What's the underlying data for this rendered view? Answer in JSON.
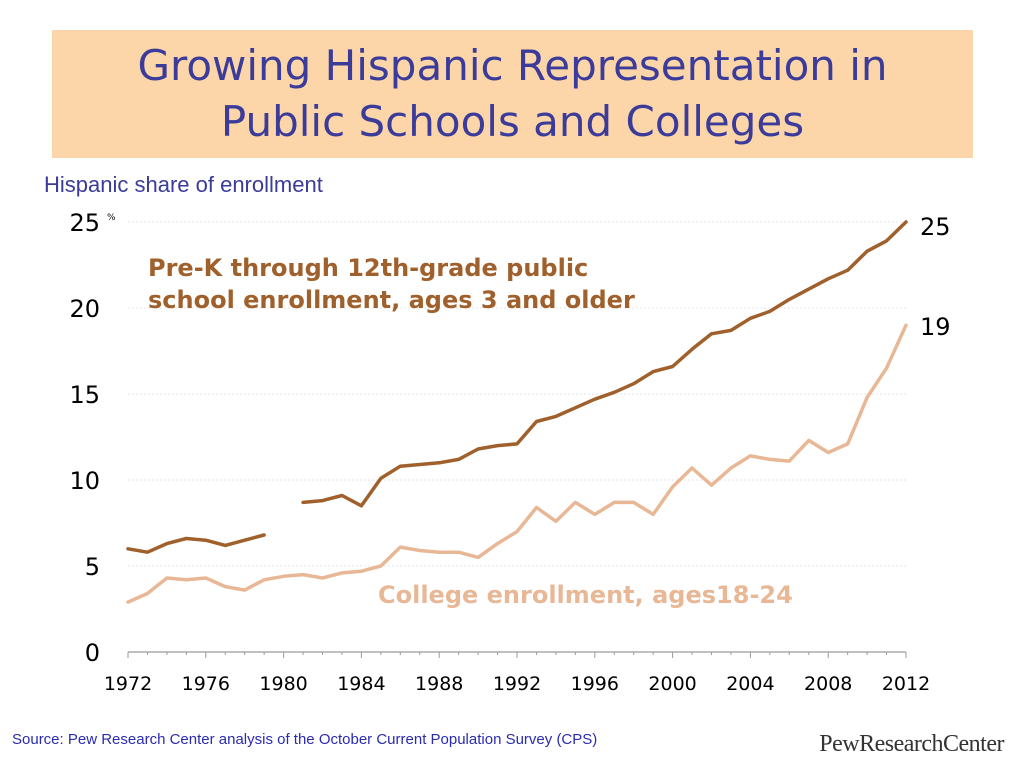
{
  "title": {
    "line1": "Growing Hispanic Representation in",
    "line2": "Public Schools and Colleges"
  },
  "subtitle": "Hispanic share of enrollment",
  "source": "Source: Pew Research Center analysis of the October Current Population Survey (CPS)",
  "logo": "PewResearchCenter",
  "colors": {
    "title": "#3b3b9a",
    "title_background": "#fcd5a8",
    "k12": "#a0602c",
    "college": "#e8b896"
  },
  "chart_data": {
    "type": "line",
    "ylabel": "",
    "yunit": "%",
    "ylim": [
      0,
      25
    ],
    "xlim": [
      1972,
      2012
    ],
    "yticks": [
      0,
      5,
      10,
      15,
      20,
      25
    ],
    "xticks": [
      1972,
      1976,
      1980,
      1984,
      1988,
      1992,
      1996,
      2000,
      2004,
      2008,
      2012
    ],
    "grid": true,
    "series": [
      {
        "name": "Pre-K through 12th-grade public school enrollment, ages 3 and older",
        "label_line1": "Pre-K through 12th-grade public",
        "label_line2": "school enrollment, ages 3 and older",
        "end_label": "25",
        "x": [
          1972,
          1973,
          1974,
          1975,
          1976,
          1977,
          1978,
          1979,
          1980,
          1981,
          1982,
          1983,
          1984,
          1985,
          1986,
          1987,
          1988,
          1989,
          1990,
          1991,
          1992,
          1993,
          1994,
          1995,
          1996,
          1997,
          1998,
          1999,
          2000,
          2001,
          2002,
          2003,
          2004,
          2005,
          2006,
          2007,
          2008,
          2009,
          2010,
          2011,
          2012
        ],
        "y": [
          6.0,
          5.8,
          6.3,
          6.6,
          6.5,
          6.2,
          6.5,
          6.8,
          null,
          8.7,
          8.8,
          9.1,
          8.5,
          10.1,
          10.8,
          10.9,
          11.0,
          11.2,
          11.8,
          12.0,
          12.1,
          13.4,
          13.7,
          14.2,
          14.7,
          15.1,
          15.6,
          16.3,
          16.6,
          17.6,
          18.5,
          18.7,
          19.4,
          19.8,
          20.5,
          21.1,
          21.7,
          22.2,
          23.3,
          23.9,
          25.0
        ]
      },
      {
        "name": "College enrollment, ages18-24",
        "label": "College enrollment, ages18-24",
        "end_label": "19",
        "x": [
          1972,
          1973,
          1974,
          1975,
          1976,
          1977,
          1978,
          1979,
          1980,
          1981,
          1982,
          1983,
          1984,
          1985,
          1986,
          1987,
          1988,
          1989,
          1990,
          1991,
          1992,
          1993,
          1994,
          1995,
          1996,
          1997,
          1998,
          1999,
          2000,
          2001,
          2002,
          2003,
          2004,
          2005,
          2006,
          2007,
          2008,
          2009,
          2010,
          2011,
          2012
        ],
        "y": [
          2.9,
          3.4,
          4.3,
          4.2,
          4.3,
          3.8,
          3.6,
          4.2,
          4.4,
          4.5,
          4.3,
          4.6,
          4.7,
          5.0,
          6.1,
          5.9,
          5.8,
          5.8,
          5.5,
          6.3,
          7.0,
          8.4,
          7.6,
          8.7,
          8.0,
          8.7,
          8.7,
          8.0,
          9.6,
          10.7,
          9.7,
          10.7,
          11.4,
          11.2,
          11.1,
          12.3,
          11.6,
          12.1,
          14.8,
          16.5,
          19.0
        ]
      }
    ]
  }
}
